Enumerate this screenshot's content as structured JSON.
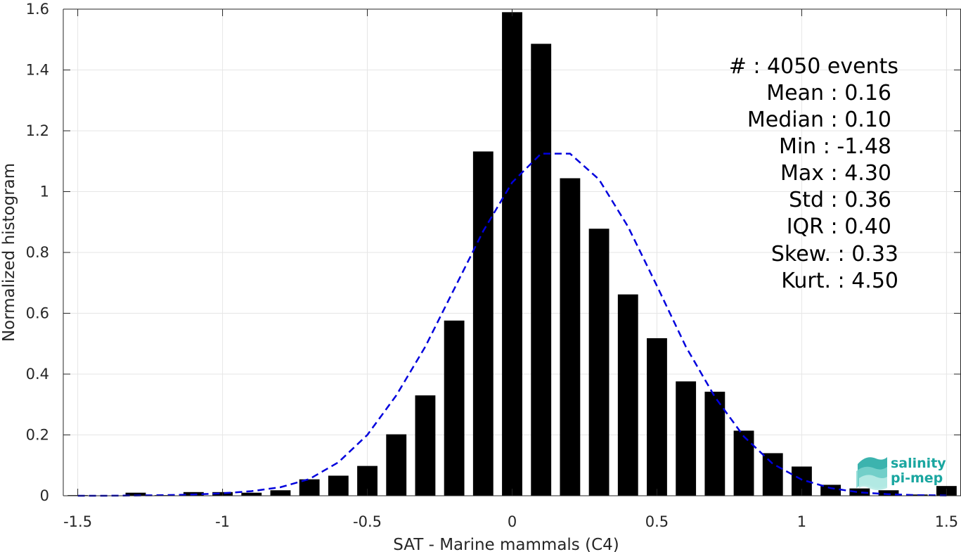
{
  "chart_data": {
    "type": "bar",
    "xlabel": "SAT - Marine mammals (C4)",
    "ylabel": "Normalized histogram",
    "xlim": [
      -1.55,
      1.55
    ],
    "ylim": [
      0,
      1.6
    ],
    "grid": true,
    "x_ticks": [
      -1.5,
      -1,
      -0.5,
      0,
      0.5,
      1,
      1.5
    ],
    "x_tick_labels": [
      "-1.5",
      "-1",
      "-0.5",
      "0",
      "0.5",
      "1",
      "1.5"
    ],
    "y_ticks": [
      0,
      0.2,
      0.4,
      0.6,
      0.8,
      1.0,
      1.2,
      1.4,
      1.6
    ],
    "y_tick_labels": [
      "0",
      "0.2",
      "0.4",
      "0.6",
      "0.8",
      "1",
      "1.2",
      "1.4",
      "1.6"
    ],
    "bin_width": 0.1,
    "bar_width": 0.07,
    "bar_color": "#000000",
    "bars": {
      "x": [
        -1.5,
        -1.4,
        -1.3,
        -1.2,
        -1.1,
        -1.0,
        -0.9,
        -0.8,
        -0.7,
        -0.6,
        -0.5,
        -0.4,
        -0.3,
        -0.2,
        -0.1,
        0.0,
        0.1,
        0.2,
        0.3,
        0.4,
        0.5,
        0.6,
        0.7,
        0.8,
        0.9,
        1.0,
        1.1,
        1.2,
        1.3,
        1.4,
        1.5
      ],
      "values": [
        0.002,
        0.0,
        0.01,
        0.002,
        0.012,
        0.012,
        0.01,
        0.018,
        0.054,
        0.066,
        0.098,
        0.202,
        0.33,
        0.576,
        1.132,
        1.59,
        1.486,
        1.044,
        0.878,
        0.662,
        0.518,
        0.376,
        0.342,
        0.214,
        0.14,
        0.096,
        0.036,
        0.024,
        0.018,
        0.004,
        0.032
      ]
    },
    "fit_curve": {
      "color": "#0000dd",
      "style": "dashed",
      "x": [
        -1.5,
        -1.4,
        -1.3,
        -1.2,
        -1.1,
        -1.0,
        -0.9,
        -0.8,
        -0.7,
        -0.6,
        -0.5,
        -0.4,
        -0.3,
        -0.2,
        -0.1,
        0.0,
        0.1,
        0.2,
        0.3,
        0.4,
        0.5,
        0.6,
        0.7,
        0.8,
        0.9,
        1.0,
        1.1,
        1.2,
        1.3,
        1.4,
        1.5
      ],
      "y": [
        0.0,
        0.0,
        0.001,
        0.002,
        0.004,
        0.008,
        0.015,
        0.028,
        0.055,
        0.11,
        0.2,
        0.33,
        0.49,
        0.68,
        0.87,
        1.03,
        1.125,
        1.125,
        1.04,
        0.885,
        0.69,
        0.49,
        0.325,
        0.195,
        0.105,
        0.053,
        0.025,
        0.011,
        0.005,
        0.002,
        0.001
      ]
    }
  },
  "stats": [
    {
      "label": "#  : 4050 events"
    },
    {
      "label": "Mean : 0.16"
    },
    {
      "label": "Median : 0.10"
    },
    {
      "label": "Min : -1.48"
    },
    {
      "label": "Max : 4.30"
    },
    {
      "label": "Std : 0.36"
    },
    {
      "label": "IQR : 0.40"
    },
    {
      "label": "Skew. : 0.33"
    },
    {
      "label": "Kurt. : 4.50"
    }
  ],
  "logo": {
    "line1": "salinity",
    "line2": "pi-mep",
    "color": "#1aa6a0"
  }
}
